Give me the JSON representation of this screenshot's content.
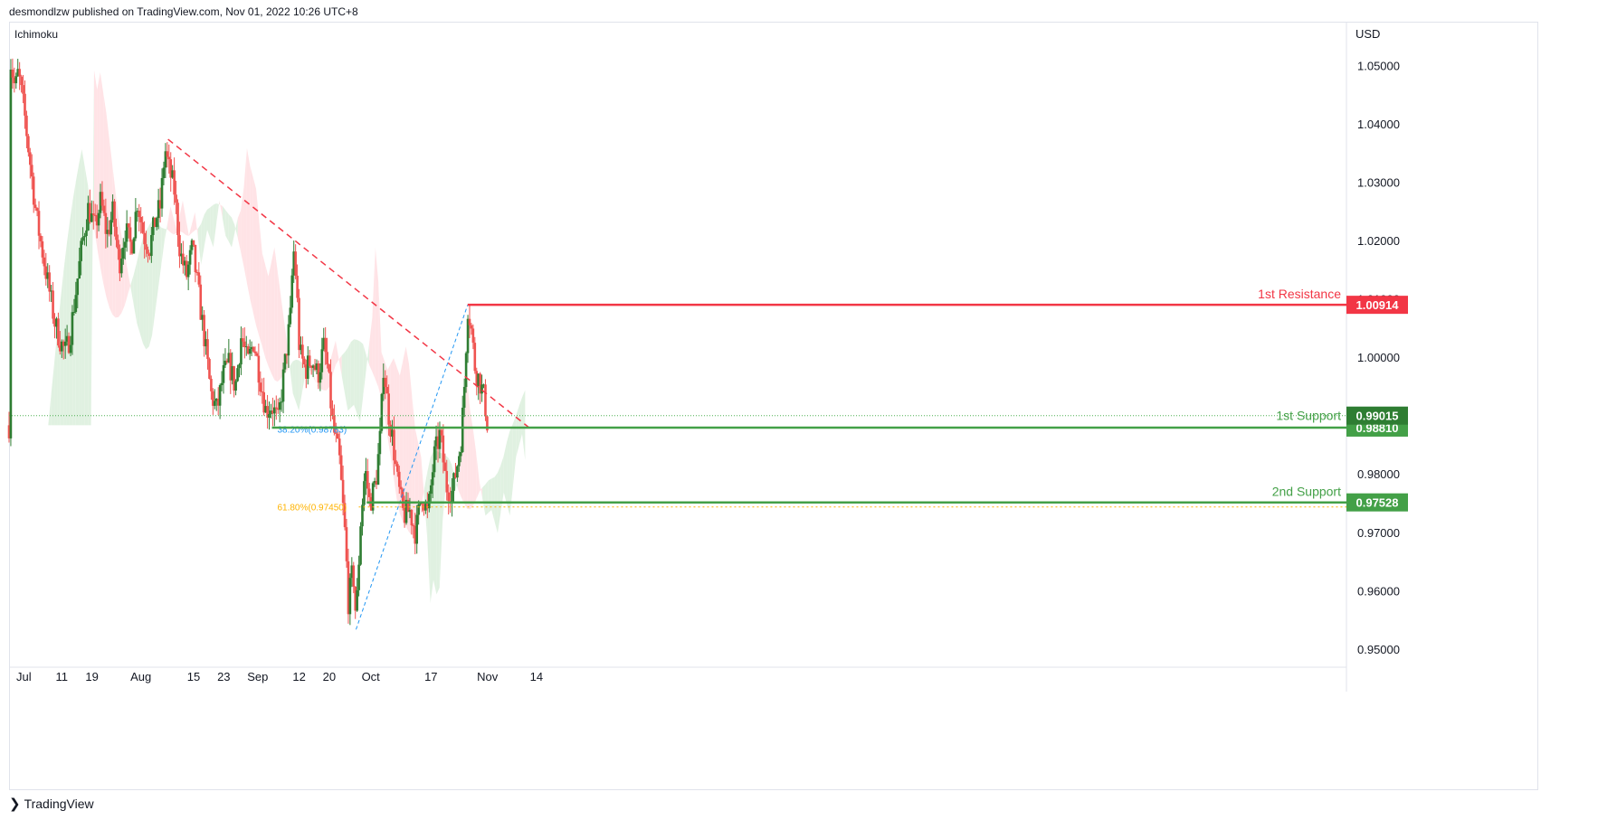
{
  "header": {
    "published_by": "desmondlzw published on TradingView.com, Nov 01, 2022 10:26 UTC+8"
  },
  "footer": {
    "brand": "TradingView",
    "brand_icon": "tradingview-logo-icon"
  },
  "colors": {
    "up": "#2e7d32",
    "down": "#ef5350",
    "cloud_bull": "#c8e6c9",
    "cloud_bear": "#ffcdd2",
    "resistance": "#f23645",
    "support": "#43a047",
    "fib_blue": "#2196f3",
    "fib_orange": "#ffb300",
    "price_dotted": "#4caf50"
  },
  "chart_data": {
    "type": "candlestick",
    "indicator": "Ichimoku",
    "currency": "USD",
    "ylim": [
      0.9475,
      1.0575
    ],
    "y_ticks": [
      "1.05000",
      "1.04000",
      "1.03000",
      "1.02000",
      "1.01000",
      "1.00000",
      "0.99000",
      "0.98000",
      "0.97000",
      "0.96000",
      "0.95000"
    ],
    "x_ticks": [
      "Jul",
      "11",
      "19",
      "Aug",
      "15",
      "23",
      "Sep",
      "12",
      "20",
      "Oct",
      "17",
      "Nov",
      "14"
    ],
    "price_path": [
      [
        1,
        1.051
      ],
      [
        4,
        1.046
      ],
      [
        6,
        1.049
      ],
      [
        10,
        1.042
      ],
      [
        14,
        1.033
      ],
      [
        18,
        1.024
      ],
      [
        22,
        1.018
      ],
      [
        26,
        1.012
      ],
      [
        30,
        1.006
      ],
      [
        34,
        1.0025
      ],
      [
        37,
        1.001
      ],
      [
        40,
        1.004
      ],
      [
        44,
        1.012
      ],
      [
        48,
        1.02
      ],
      [
        52,
        1.026
      ],
      [
        56,
        1.022
      ],
      [
        60,
        1.027
      ],
      [
        64,
        1.021
      ],
      [
        68,
        1.025
      ],
      [
        72,
        1.016
      ],
      [
        76,
        1.022
      ],
      [
        80,
        1.019
      ],
      [
        84,
        1.027
      ],
      [
        88,
        1.021
      ],
      [
        92,
        1.019
      ],
      [
        96,
        1.024
      ],
      [
        99,
        1.026
      ],
      [
        102,
        1.036
      ],
      [
        104,
        1.033
      ],
      [
        108,
        1.029
      ],
      [
        112,
        1.018
      ],
      [
        116,
        1.014
      ],
      [
        120,
        1.019
      ],
      [
        124,
        1.011
      ],
      [
        128,
        1.003
      ],
      [
        132,
        0.994
      ],
      [
        136,
        0.991
      ],
      [
        140,
        0.997
      ],
      [
        144,
        0.999
      ],
      [
        148,
        0.995
      ],
      [
        152,
        1.004
      ],
      [
        156,
        0.999
      ],
      [
        160,
        1.003
      ],
      [
        164,
        0.997
      ],
      [
        168,
        0.991
      ],
      [
        172,
        0.992
      ],
      [
        176,
        0.989
      ],
      [
        180,
        0.998
      ],
      [
        184,
        1.007
      ],
      [
        186,
        1.019
      ],
      [
        188,
        1.013
      ],
      [
        190,
        1.001
      ],
      [
        194,
        0.998
      ],
      [
        198,
        1.0
      ],
      [
        202,
        0.997
      ],
      [
        206,
        1.002
      ],
      [
        208,
        0.999
      ],
      [
        212,
        0.988
      ],
      [
        216,
        0.983
      ],
      [
        220,
        0.969
      ],
      [
        222,
        0.958
      ],
      [
        225,
        0.964
      ],
      [
        227,
        0.955
      ],
      [
        230,
        0.972
      ],
      [
        233,
        0.981
      ],
      [
        236,
        0.975
      ],
      [
        240,
        0.979
      ],
      [
        243,
        0.987
      ],
      [
        245,
        0.999
      ],
      [
        248,
        0.991
      ],
      [
        251,
        0.986
      ],
      [
        254,
        0.979
      ],
      [
        258,
        0.973
      ],
      [
        262,
        0.974
      ],
      [
        266,
        0.97
      ],
      [
        270,
        0.977
      ],
      [
        274,
        0.973
      ],
      [
        278,
        0.983
      ],
      [
        282,
        0.987
      ],
      [
        286,
        0.978
      ],
      [
        290,
        0.977
      ],
      [
        294,
        0.983
      ],
      [
        296,
        0.987
      ],
      [
        298,
        0.996
      ],
      [
        300,
        1.009
      ],
      [
        302,
        1.006
      ],
      [
        305,
        0.998
      ],
      [
        308,
        0.996
      ],
      [
        311,
        0.993
      ],
      [
        313,
        0.9885
      ]
    ],
    "time_axis": {
      "x_start": 0,
      "x_end": 355,
      "comment": "x index = calendar days since Jun 27, 2022"
    },
    "downtrend_line": {
      "from": [
        104,
        1.0375
      ],
      "to": [
        316,
        0.9895
      ],
      "style": "dashed",
      "color": "#f23645"
    },
    "fib_retracement": {
      "from": [
        227,
        0.9535
      ],
      "to": [
        300,
        1.0091
      ],
      "levels": [
        {
          "label": "38.20%(0.98783)",
          "ratio": 0.382,
          "price": 0.98783,
          "color": "#2196f3"
        },
        {
          "label": "61.80%(0.97450)",
          "ratio": 0.618,
          "price": 0.9745,
          "color": "#ffb300"
        }
      ]
    },
    "levels": [
      {
        "name": "1st Resistance",
        "price": 1.00914,
        "label": "1.00914",
        "color": "#f23645",
        "from_x": 300
      },
      {
        "name": "1st Support",
        "price": 0.9881,
        "label": "0.98810",
        "color": "#43a047",
        "from_x": 172
      },
      {
        "name": "2nd Support",
        "price": 0.97528,
        "label": "0.97528",
        "color": "#43a047",
        "from_x": 234
      }
    ],
    "last_price": {
      "price": 0.99015,
      "label": "0.99015",
      "color": "#2e7d32"
    }
  }
}
